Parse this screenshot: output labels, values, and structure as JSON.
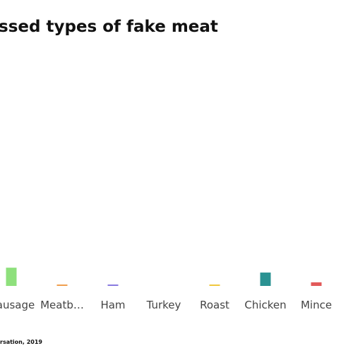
{
  "chart_data": {
    "type": "bar",
    "title": "ssed types of fake meat",
    "source": "rsation, 2019",
    "categories": [
      "ausage",
      "Meatb…",
      "Ham",
      "Turkey",
      "Roast",
      "Chicken",
      "Mince"
    ],
    "values": [
      7.2,
      0.3,
      0.3,
      0,
      0.3,
      5.2,
      1.2
    ],
    "colors": [
      "#8ee07c",
      "#f0a050",
      "#8a7be0",
      "#4aa0d0",
      "#f0c840",
      "#2a9292",
      "#e25a5a"
    ],
    "ylim": [
      0,
      100
    ]
  }
}
